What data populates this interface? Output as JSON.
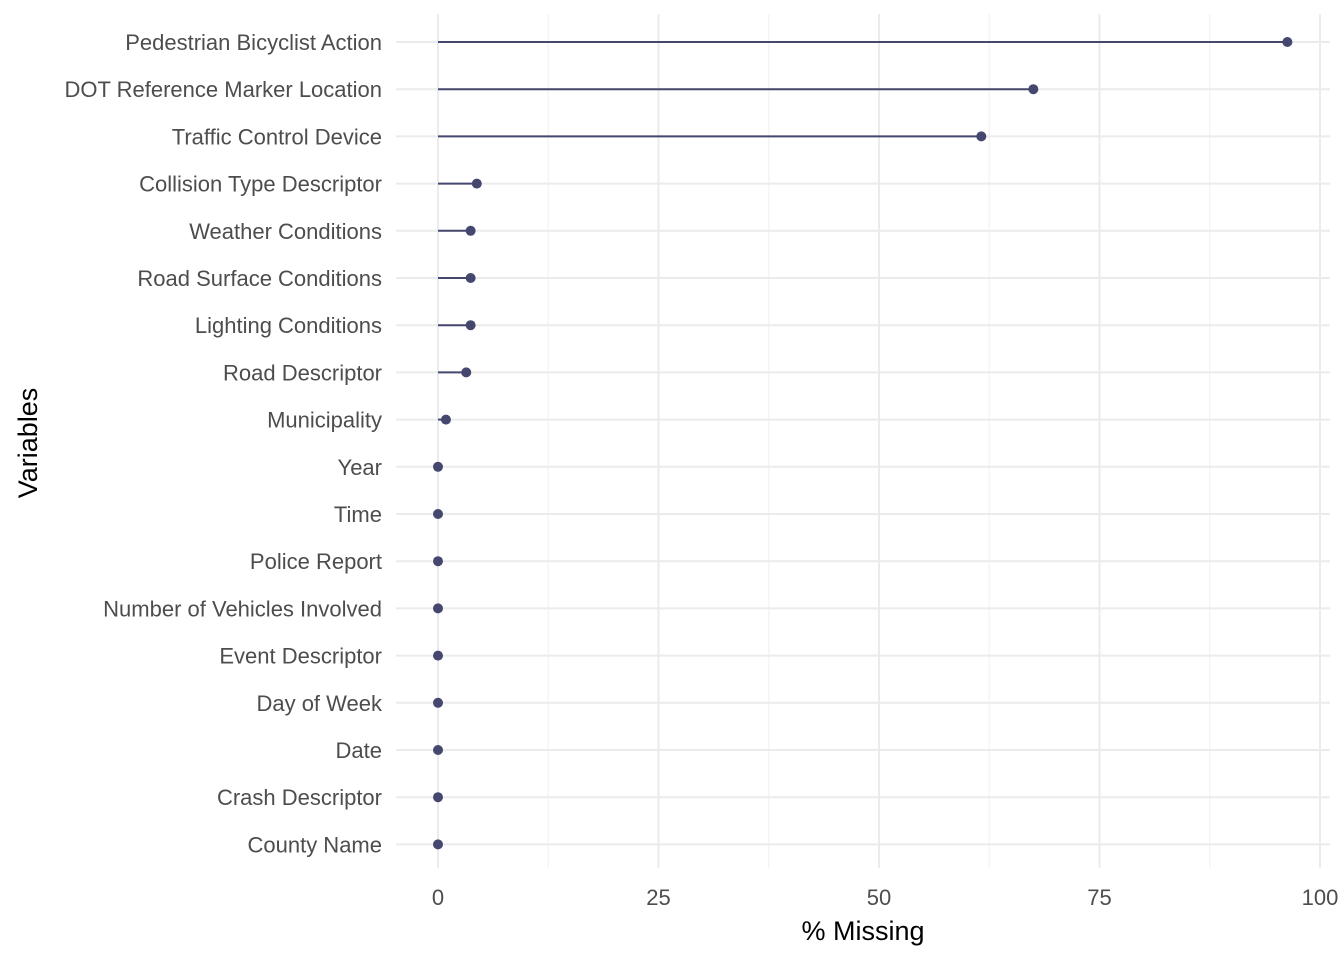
{
  "chart_data": {
    "type": "lollipop",
    "xlabel": "% Missing",
    "ylabel": "Variables",
    "xlim": [
      0,
      100
    ],
    "x_ticks": [
      0,
      25,
      50,
      75,
      100
    ],
    "grid": true,
    "legend": "none",
    "colors": {
      "series": "#45476f",
      "grid_major": "#ebebeb",
      "grid_minor": "#f2f2f2",
      "tick_text": "#4d4d4d",
      "title_text": "#000000"
    },
    "categories": [
      "Pedestrian Bicyclist Action",
      "DOT Reference Marker Location",
      "Traffic Control Device",
      "Collision Type Descriptor",
      "Weather Conditions",
      "Road Surface Conditions",
      "Lighting Conditions",
      "Road Descriptor",
      "Municipality",
      "Year",
      "Time",
      "Police Report",
      "Number of Vehicles Involved",
      "Event Descriptor",
      "Day of Week",
      "Date",
      "Crash Descriptor",
      "County Name"
    ],
    "values": [
      96.3,
      67.5,
      61.6,
      4.4,
      3.7,
      3.7,
      3.7,
      3.2,
      0.9,
      0,
      0,
      0,
      0,
      0,
      0,
      0,
      0,
      0
    ]
  }
}
